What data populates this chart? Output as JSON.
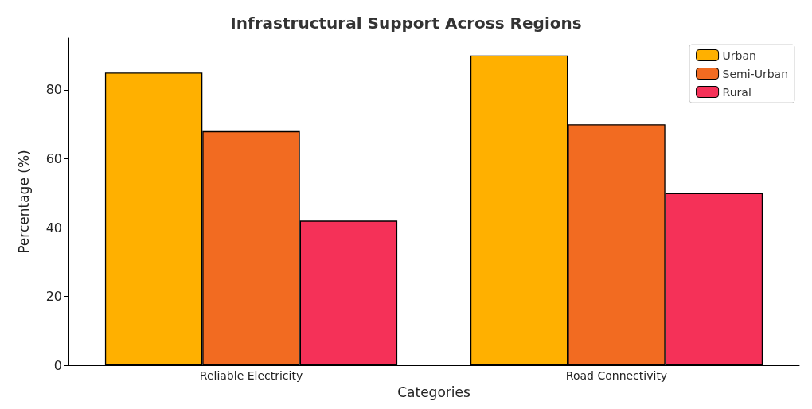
{
  "chart_data": {
    "type": "bar",
    "title": "Infrastructural Support Across Regions",
    "xlabel": "Categories",
    "ylabel": "Percentage (%)",
    "categories": [
      "Reliable Electricity",
      "Road Connectivity"
    ],
    "series": [
      {
        "name": "Urban",
        "color": "#ffb000",
        "values": [
          85,
          90
        ]
      },
      {
        "name": "Semi-Urban",
        "color": "#f26b21",
        "values": [
          68,
          70
        ]
      },
      {
        "name": "Rural",
        "color": "#f53158",
        "values": [
          42,
          50
        ]
      }
    ],
    "ylim": [
      0,
      95
    ],
    "yticks": [
      0,
      20,
      40,
      60,
      80
    ],
    "grid": false,
    "legend": "top right"
  }
}
